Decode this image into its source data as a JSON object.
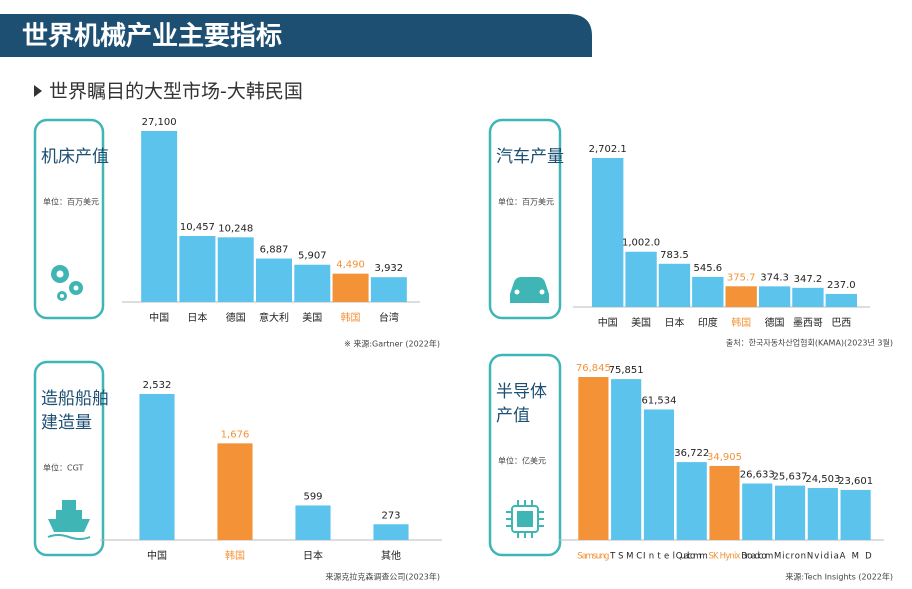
{
  "title": "世界机械产业主要指标",
  "subtitle": "世界瞩目的大型市场-大韩民国",
  "chart_data": [
    {
      "type": "bar",
      "title": [
        "机床产值"
      ],
      "unit": "单位：百万美元",
      "source": "※ 来源:Gartner (2022年)",
      "categories": [
        "中国",
        "日本",
        "德国",
        "意大利",
        "美国",
        "韩国",
        "台湾"
      ],
      "values": [
        27100,
        10457,
        10248,
        6887,
        5907,
        4490,
        3932
      ],
      "value_labels": [
        "27,100",
        "10,457",
        "10,248",
        "6,887",
        "5,907",
        "4,490",
        "3,932"
      ],
      "colors": [
        "#5cc3ec",
        "#5cc3ec",
        "#5cc3ec",
        "#5cc3ec",
        "#5cc3ec",
        "#f39237",
        "#5cc3ec"
      ]
    },
    {
      "type": "bar",
      "title": [
        "汽车产量"
      ],
      "unit": "单位：百万美元",
      "source": "출처：한국자동차산업협회(KAMA)(2023년 3월)",
      "categories": [
        "中国",
        "美国",
        "日本",
        "印度",
        "韩国",
        "德国",
        "墨西哥",
        "巴西"
      ],
      "values": [
        2702.1,
        1002.0,
        783.5,
        545.6,
        375.7,
        374.3,
        347.2,
        237.0
      ],
      "value_labels": [
        "2,702.1",
        "1,002.0",
        "783.5",
        "545.6",
        "375.7",
        "374.3",
        "347.2",
        "237.0"
      ],
      "colors": [
        "#5cc3ec",
        "#5cc3ec",
        "#5cc3ec",
        "#5cc3ec",
        "#f39237",
        "#5cc3ec",
        "#5cc3ec",
        "#5cc3ec"
      ]
    },
    {
      "type": "bar",
      "title": [
        "造船船舶",
        "建造量"
      ],
      "unit": "单位：CGT",
      "source": "来源克拉克森调查公司(2023年)",
      "categories": [
        "中国",
        "韩国",
        "日本",
        "其他"
      ],
      "values": [
        2532,
        1676,
        599,
        273
      ],
      "value_labels": [
        "2,532",
        "1,676",
        "599",
        "273"
      ],
      "colors": [
        "#5cc3ec",
        "#f39237",
        "#5cc3ec",
        "#5cc3ec"
      ]
    },
    {
      "type": "bar",
      "title": [
        "半导体",
        "产值"
      ],
      "unit": "单位：亿美元",
      "source": "来源:Tech Insights (2022年)",
      "categories": [
        "Samsung",
        "TSMC",
        "Intel",
        "Qualcomm",
        "SK Hynix",
        "Broadcom",
        "Micron",
        "Nvidia",
        "AMD"
      ],
      "values": [
        76845,
        75851,
        61534,
        36722,
        34905,
        26633,
        25637,
        24503,
        23601
      ],
      "value_labels": [
        "76,845",
        "75,851",
        "61,534",
        "36,722",
        "34,905",
        "26,633",
        "25,637",
        "24,503",
        "23,601"
      ],
      "colors": [
        "#f39237",
        "#5cc3ec",
        "#5cc3ec",
        "#5cc3ec",
        "#f39237",
        "#5cc3ec",
        "#5cc3ec",
        "#5cc3ec",
        "#5cc3ec"
      ]
    }
  ]
}
